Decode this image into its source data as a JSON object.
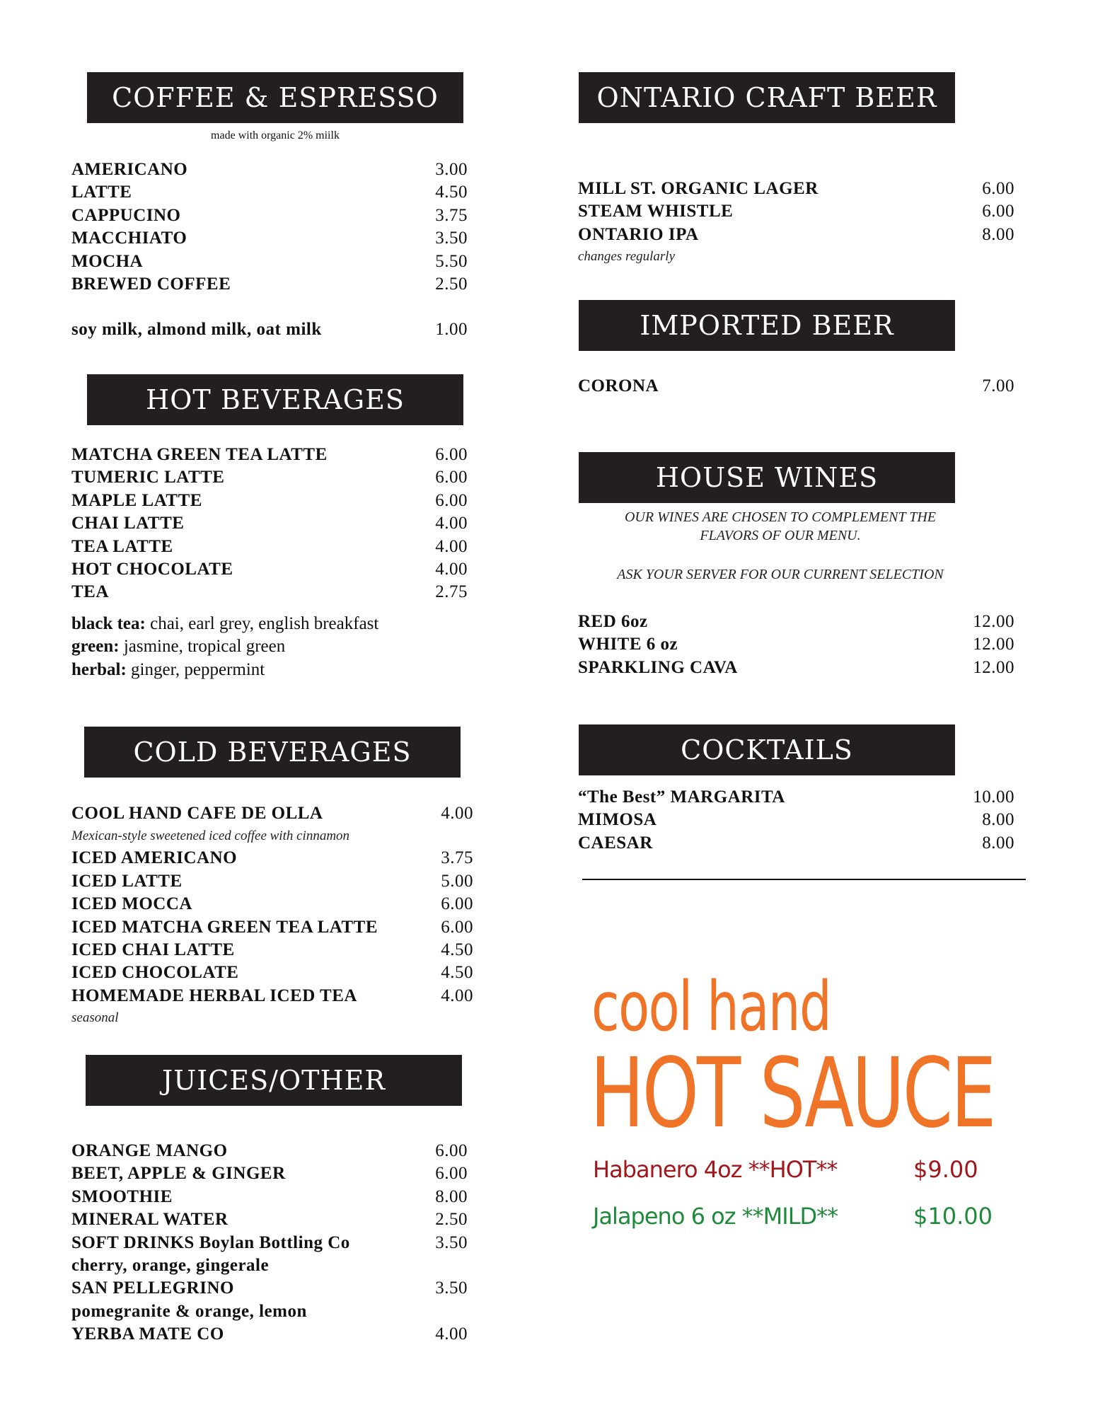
{
  "left": {
    "coffee": {
      "title": "COFFEE & ESPRESSO",
      "subtitle": "made with organic 2% miilk",
      "items": [
        {
          "name": "AMERICANO",
          "price": "3.00"
        },
        {
          "name": "LATTE",
          "price": "4.50"
        },
        {
          "name": "CAPPUCINO",
          "price": "3.75"
        },
        {
          "name": "MACCHIATO",
          "price": "3.50"
        },
        {
          "name": "MOCHA",
          "price": "5.50"
        },
        {
          "name": "BREWED COFFEE",
          "price": "2.50"
        }
      ],
      "extra": {
        "name": "soy milk, almond milk, oat milk",
        "price": "1.00"
      }
    },
    "hot": {
      "title": "HOT BEVERAGES",
      "items": [
        {
          "name": "MATCHA GREEN TEA LATTE",
          "price": "6.00"
        },
        {
          "name": "TUMERIC LATTE",
          "price": "6.00"
        },
        {
          "name": "MAPLE LATTE",
          "price": "6.00"
        },
        {
          "name": "CHAI LATTE",
          "price": "4.00"
        },
        {
          "name": "TEA LATTE",
          "price": "4.00"
        },
        {
          "name": "HOT CHOCOLATE",
          "price": "4.00"
        },
        {
          "name": "TEA",
          "price": "2.75"
        }
      ],
      "teas": [
        {
          "label": "black tea:",
          "list": " chai, earl grey, english breakfast"
        },
        {
          "label": "green:",
          "list": " jasmine, tropical green"
        },
        {
          "label": "herbal:",
          "list": " ginger, peppermint"
        }
      ]
    },
    "cold": {
      "title": "COLD BEVERAGES",
      "first": {
        "name": "COOL HAND CAFE DE OLLA",
        "price": "4.00",
        "desc": "Mexican-style sweetened iced coffee with cinnamon"
      },
      "items": [
        {
          "name": "ICED AMERICANO",
          "price": "3.75"
        },
        {
          "name": "ICED LATTE",
          "price": "5.00"
        },
        {
          "name": "ICED MOCCA",
          "price": "6.00"
        },
        {
          "name": "ICED MATCHA GREEN TEA LATTE",
          "price": "6.00"
        },
        {
          "name": "ICED CHAI LATTE",
          "price": "4.50"
        },
        {
          "name": "ICED CHOCOLATE",
          "price": "4.50"
        },
        {
          "name": "HOMEMADE HERBAL ICED TEA",
          "price": "4.00"
        }
      ],
      "note": "seasonal"
    },
    "juices": {
      "title": "JUICES/OTHER",
      "items": [
        {
          "name": "ORANGE MANGO",
          "price": "6.00"
        },
        {
          "name": "BEET, APPLE & GINGER",
          "price": "6.00"
        },
        {
          "name": "SMOOTHIE",
          "price": "8.00"
        },
        {
          "name": "MINERAL WATER",
          "price": "2.50"
        },
        {
          "name": "SOFT DRINKS Boylan Bottling Co",
          "price": "3.50"
        },
        {
          "name": "cherry, orange, gingerale",
          "price": ""
        },
        {
          "name": "SAN PELLEGRINO",
          "price": "3.50"
        },
        {
          "name": "pomegranite & orange, lemon",
          "price": ""
        },
        {
          "name": "YERBA MATE CO",
          "price": "4.00"
        }
      ]
    }
  },
  "right": {
    "craft": {
      "title": "ONTARIO CRAFT BEER",
      "items": [
        {
          "name": "MILL ST. ORGANIC LAGER",
          "price": "6.00"
        },
        {
          "name": "STEAM WHISTLE",
          "price": "6.00"
        },
        {
          "name": "ONTARIO IPA",
          "price": "8.00"
        }
      ],
      "note": "changes regularly"
    },
    "imported": {
      "title": "IMPORTED BEER",
      "items": [
        {
          "name": "CORONA",
          "price": "7.00"
        }
      ]
    },
    "wines": {
      "title": "HOUSE WINES",
      "note1": "OUR WINES ARE CHOSEN TO COMPLEMENT THE",
      "note2": "FLAVORS OF OUR MENU.",
      "note3": "ASK YOUR SERVER FOR OUR CURRENT SELECTION",
      "items": [
        {
          "name": "RED 6oz",
          "price": "12.00"
        },
        {
          "name": "WHITE 6 oz",
          "price": "12.00"
        },
        {
          "name": "SPARKLING CAVA",
          "price": "12.00"
        }
      ]
    },
    "cocktails": {
      "title": "COCKTAILS",
      "items": [
        {
          "name": "“The Best” MARGARITA",
          "price": "10.00"
        },
        {
          "name": "MIMOSA",
          "price": "8.00"
        },
        {
          "name": "CAESAR",
          "price": "8.00"
        }
      ]
    },
    "hotsauce": {
      "line1": "cool hand",
      "line2": "HOT SAUCE",
      "brand_color": "#f07428",
      "items": [
        {
          "name": "Habanero 4oz **HOT**",
          "price": "$9.00",
          "color": "#a3161b"
        },
        {
          "name": "Jalapeno 6 oz **MILD**",
          "price": "$10.00",
          "color": "#1f8a3c"
        }
      ]
    }
  }
}
